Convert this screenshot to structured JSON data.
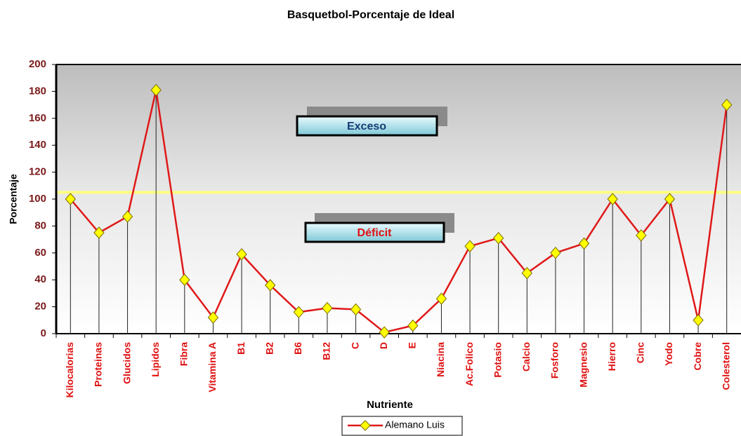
{
  "chart_data": {
    "type": "line",
    "title": "Basquetbol-Porcentaje de Ideal",
    "x_label": "Nutriente",
    "y_label": "Porcentaje",
    "annotations": [
      "Exceso",
      "Déficit"
    ],
    "reference_line": 105,
    "reference_color": "#ffff80",
    "categories": [
      "Kilocalorias",
      "Proteinas",
      "Glucidos",
      "Lipidos",
      "Fibra",
      "Vitamina A",
      "B1",
      "B2",
      "B6",
      "B12",
      "C",
      "D",
      "E",
      "Niacina",
      "Ac.Folico",
      "Potasio",
      "Calcio",
      "Fosforo",
      "Magnesio",
      "Hierro",
      "Cinc",
      "Yodo",
      "Cobre",
      "Colesterol"
    ],
    "series": [
      {
        "name": "Alemano Luis",
        "color": "#e01818",
        "marker_color": "#ffff00",
        "values": [
          100,
          75,
          87,
          181,
          40,
          12,
          59,
          36,
          16,
          19,
          18,
          1,
          6,
          26,
          65,
          71,
          45,
          60,
          67,
          100,
          73,
          100,
          10,
          170
        ]
      }
    ],
    "ylim": [
      0,
      200
    ],
    "yticks": [
      0,
      20,
      40,
      60,
      80,
      100,
      120,
      140,
      160,
      180,
      200
    ],
    "grid": false
  }
}
